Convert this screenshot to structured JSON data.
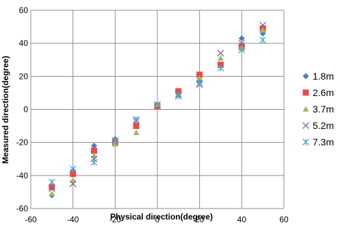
{
  "chart_data": {
    "type": "scatter",
    "xlabel": "Physical direction(degree)",
    "ylabel": "Measured direction(degree)",
    "xlim": [
      -60,
      60
    ],
    "ylim": [
      -60,
      60
    ],
    "x_ticks": [
      -60,
      -40,
      -20,
      0,
      20,
      40,
      60
    ],
    "y_ticks": [
      -60,
      -40,
      -20,
      0,
      20,
      40,
      60
    ],
    "grid": true,
    "legend_position": "right",
    "series": [
      {
        "name": "1.8m",
        "color": "#4a7ebb",
        "marker": "diamond",
        "points": [
          [
            -50,
            -52
          ],
          [
            -40,
            -37
          ],
          [
            -30,
            -22
          ],
          [
            -20,
            -18
          ],
          [
            -10,
            -10
          ],
          [
            0,
            3
          ],
          [
            10,
            10
          ],
          [
            20,
            17
          ],
          [
            40,
            43
          ],
          [
            50,
            46
          ]
        ]
      },
      {
        "name": "2.6m",
        "color": "#f0484a",
        "marker": "square",
        "points": [
          [
            -50,
            -47
          ],
          [
            -40,
            -39
          ],
          [
            -30,
            -25
          ],
          [
            -20,
            -20
          ],
          [
            -10,
            -10
          ],
          [
            0,
            2
          ],
          [
            10,
            11
          ],
          [
            20,
            21
          ],
          [
            30,
            27
          ],
          [
            40,
            38
          ],
          [
            50,
            49
          ]
        ]
      },
      {
        "name": "3.7m",
        "color": "#9bbb59",
        "marker": "triangle",
        "points": [
          [
            -50,
            -51
          ],
          [
            -40,
            -43
          ],
          [
            -30,
            -28
          ],
          [
            -20,
            -21
          ],
          [
            -10,
            -14
          ],
          [
            0,
            3
          ],
          [
            10,
            9
          ],
          [
            20,
            19
          ],
          [
            30,
            31
          ],
          [
            40,
            37
          ],
          [
            50,
            48
          ]
        ]
      },
      {
        "name": "5.2m",
        "color": "#8064a2",
        "marker": "x",
        "points": [
          [
            -50,
            -48
          ],
          [
            -40,
            -45
          ],
          [
            -30,
            -30
          ],
          [
            -20,
            -19
          ],
          [
            -10,
            -7
          ],
          [
            0,
            3
          ],
          [
            10,
            9
          ],
          [
            20,
            15
          ],
          [
            30,
            34
          ],
          [
            40,
            40
          ],
          [
            50,
            51
          ]
        ]
      },
      {
        "name": "7.3m",
        "color": "#4bacc6",
        "marker": "star",
        "points": [
          [
            -50,
            -44
          ],
          [
            -40,
            -36
          ],
          [
            -30,
            -32
          ],
          [
            -20,
            -19
          ],
          [
            -10,
            -6
          ],
          [
            0,
            3
          ],
          [
            10,
            8
          ],
          [
            20,
            16
          ],
          [
            30,
            25
          ],
          [
            40,
            36
          ],
          [
            50,
            42
          ]
        ]
      }
    ]
  }
}
